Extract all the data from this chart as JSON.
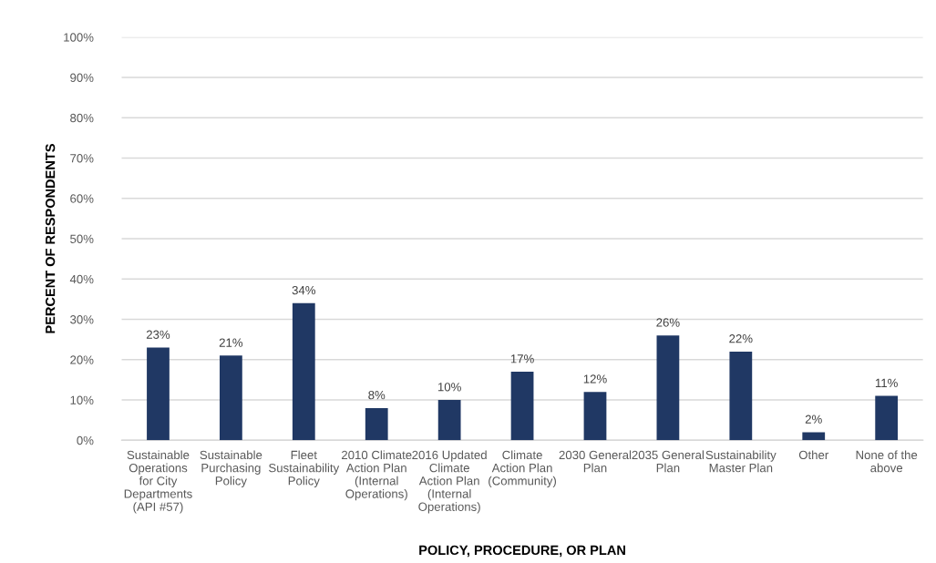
{
  "chart_data": {
    "type": "bar",
    "xlabel": "POLICY, PROCEDURE, OR PLAN",
    "ylabel": "PERCENT OF RESPONDENTS",
    "categories": [
      "Sustainable Operations for City Departments (API #57)",
      "Sustainable Purchasing Policy",
      "Fleet Sustainability Policy",
      "2010 Climate Action Plan (Internal Operations)",
      "2016 Updated Climate Action Plan (Internal Operations)",
      "Climate Action Plan (Community)",
      "2030 General Plan",
      "2035 General Plan",
      "Sustainability Master Plan",
      "Other",
      "None of the above"
    ],
    "values": [
      23,
      21,
      34,
      8,
      10,
      17,
      12,
      26,
      22,
      2,
      11
    ],
    "value_labels": [
      "23%",
      "21%",
      "34%",
      "8%",
      "10%",
      "17%",
      "12%",
      "26%",
      "22%",
      "2%",
      "11%"
    ],
    "color": "#203864",
    "ylim": [
      0,
      100
    ],
    "yticks": [
      {
        "value": 0,
        "label": "0%"
      },
      {
        "value": 10,
        "label": "10%"
      },
      {
        "value": 20,
        "label": "20%"
      },
      {
        "value": 30,
        "label": "30%"
      },
      {
        "value": 40,
        "label": "40%"
      },
      {
        "value": 50,
        "label": "50%"
      },
      {
        "value": 60,
        "label": "60%"
      },
      {
        "value": 70,
        "label": "70%"
      },
      {
        "value": 80,
        "label": "80%"
      },
      {
        "value": 90,
        "label": "90%"
      },
      {
        "value": 100,
        "label": "100%"
      }
    ],
    "grid": "y",
    "legend": false
  }
}
